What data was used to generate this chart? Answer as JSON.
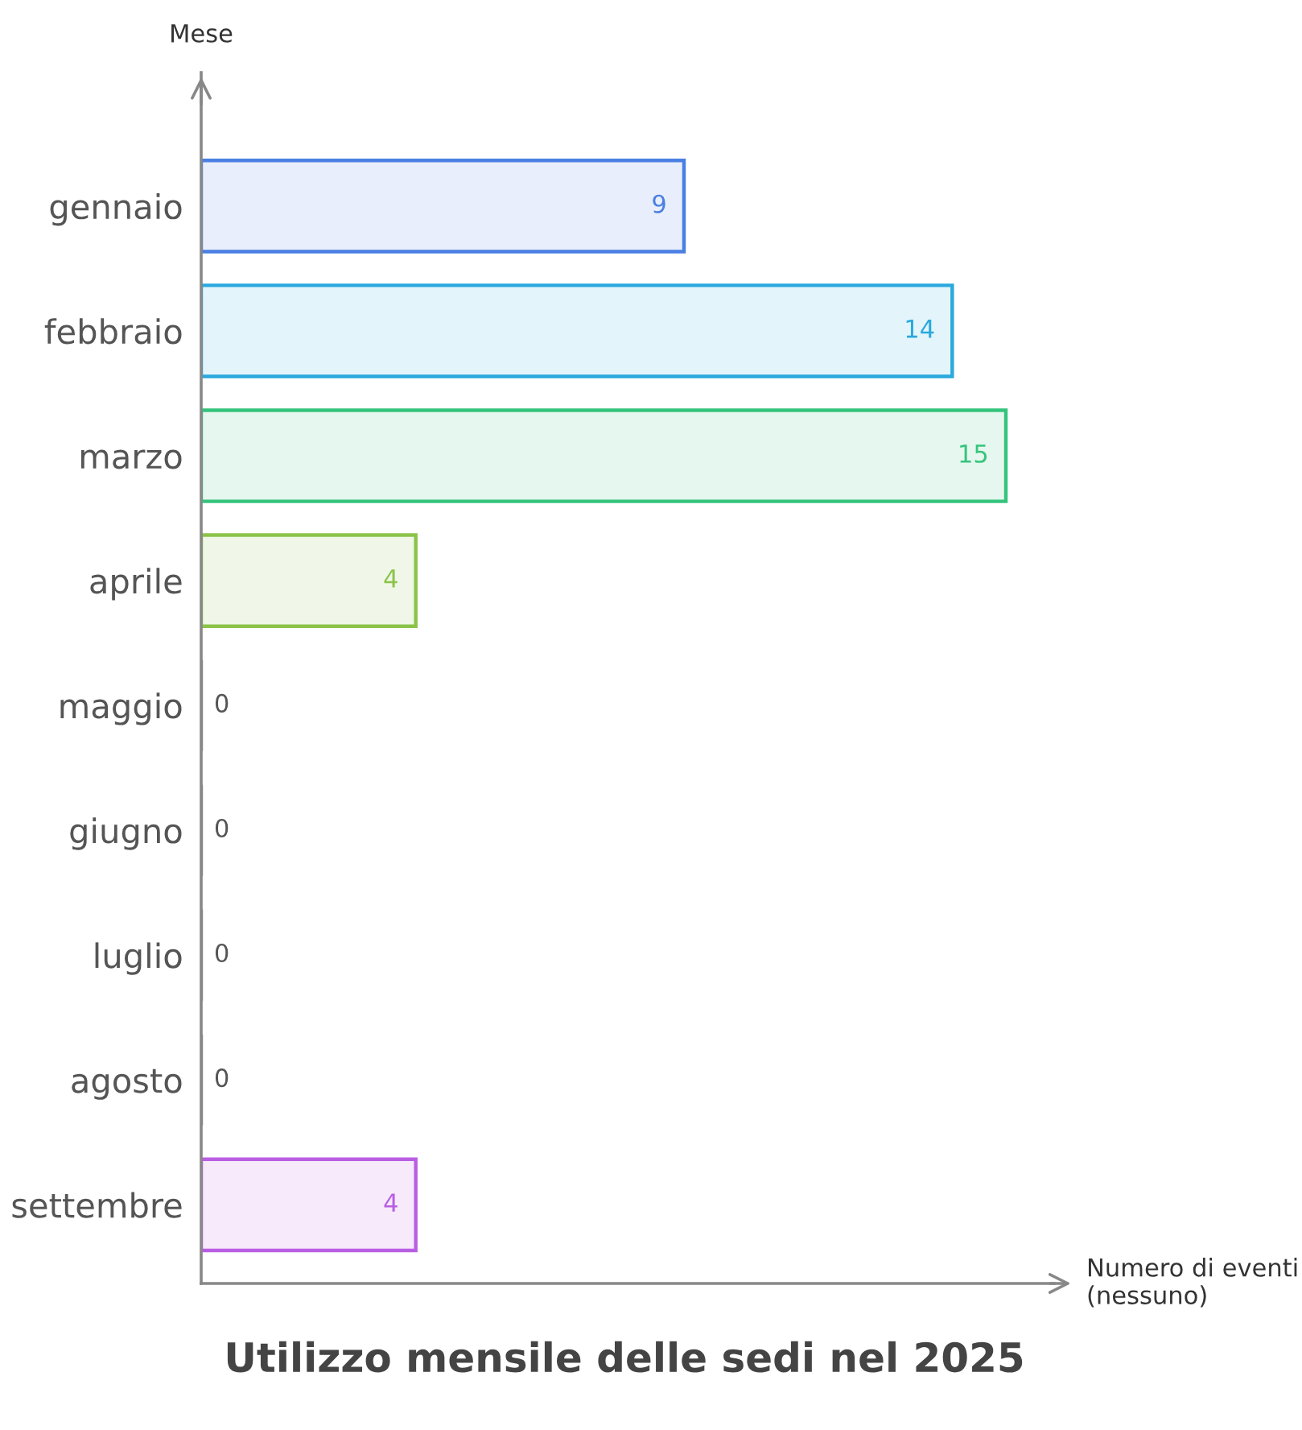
{
  "chart_data": {
    "type": "bar",
    "orientation": "horizontal",
    "title": "Utilizzo mensile delle sedi nel 2025",
    "xlabel": "Numero di eventi (nessuno)",
    "ylabel": "Mese",
    "categories": [
      "gennaio",
      "febbraio",
      "marzo",
      "aprile",
      "maggio",
      "giugno",
      "luglio",
      "agosto",
      "settembre"
    ],
    "values": [
      9,
      14,
      15,
      4,
      0,
      0,
      0,
      0,
      4
    ],
    "colors": [
      "#4a7fe3",
      "#2aa9dd",
      "#35c47c",
      "#8bc34a",
      "#888888",
      "#888888",
      "#888888",
      "#888888",
      "#b95ee3"
    ],
    "xlim": [
      0,
      15.9
    ],
    "tick_labels": "y",
    "data_labels": true,
    "grid": false,
    "legend": false
  }
}
